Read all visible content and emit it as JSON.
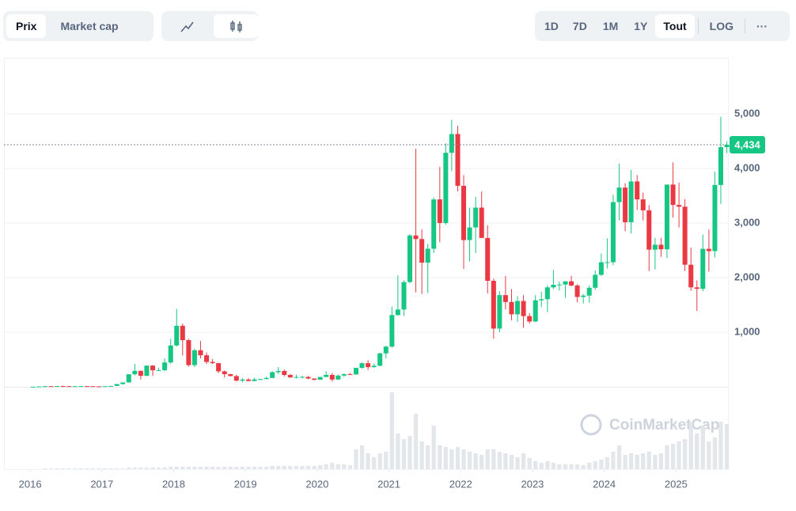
{
  "toolbar": {
    "metric_tabs": [
      "Prix",
      "Market cap"
    ],
    "ranges": [
      "1D",
      "7D",
      "1M",
      "1Y",
      "Tout"
    ],
    "log": "LOG",
    "more": "···"
  },
  "watermark": "CoinMarketCap",
  "chart_data": {
    "type": "candlestick",
    "up_color": "#16c784",
    "down_color": "#ea3943",
    "volume_color": "#e3e6ea",
    "grid": true,
    "ylim": [
      0,
      6000
    ],
    "yticks": [
      {
        "value": 1000,
        "label": "1,000"
      },
      {
        "value": 2000,
        "label": "2,000"
      },
      {
        "value": 3000,
        "label": "3,000"
      },
      {
        "value": 4000,
        "label": "4,000"
      },
      {
        "value": 5000,
        "label": "5,000"
      }
    ],
    "xlim": [
      2015.635,
      2025.724
    ],
    "xticks": [
      2016,
      2017,
      2018,
      2019,
      2020,
      2021,
      2022,
      2023,
      2024,
      2025
    ],
    "last_price": {
      "value": 4434,
      "label": "4,434"
    },
    "x": [
      2016,
      2016.083,
      2016.167,
      2016.25,
      2016.333,
      2016.417,
      2016.5,
      2016.583,
      2016.667,
      2016.75,
      2016.833,
      2016.917,
      2017,
      2017.083,
      2017.167,
      2017.25,
      2017.333,
      2017.417,
      2017.5,
      2017.583,
      2017.667,
      2017.75,
      2017.833,
      2017.917,
      2018,
      2018.083,
      2018.167,
      2018.25,
      2018.333,
      2018.417,
      2018.5,
      2018.583,
      2018.667,
      2018.75,
      2018.833,
      2018.917,
      2019,
      2019.083,
      2019.167,
      2019.25,
      2019.333,
      2019.417,
      2019.5,
      2019.583,
      2019.667,
      2019.75,
      2019.833,
      2019.917,
      2020,
      2020.083,
      2020.167,
      2020.25,
      2020.333,
      2020.417,
      2020.5,
      2020.583,
      2020.667,
      2020.75,
      2020.833,
      2020.917,
      2021,
      2021.083,
      2021.167,
      2021.25,
      2021.333,
      2021.417,
      2021.5,
      2021.583,
      2021.667,
      2021.75,
      2021.833,
      2021.917,
      2022,
      2022.083,
      2022.167,
      2022.25,
      2022.333,
      2022.417,
      2022.5,
      2022.583,
      2022.667,
      2022.75,
      2022.833,
      2022.917,
      2023,
      2023.083,
      2023.167,
      2023.25,
      2023.333,
      2023.417,
      2023.5,
      2023.583,
      2023.667,
      2023.75,
      2023.833,
      2023.917,
      2024,
      2024.083,
      2024.167,
      2024.25,
      2024.333,
      2024.417,
      2024.5,
      2024.583,
      2024.667,
      2024.75,
      2024.833,
      2024.917,
      2025,
      2025.083,
      2025.167,
      2025.25,
      2025.333,
      2025.417,
      2025.5,
      2025.583,
      2025.667
    ],
    "ohlc": [
      [
        0.95,
        2.2,
        0.9,
        2.2
      ],
      [
        2.2,
        6.7,
        2.1,
        6.4
      ],
      [
        6.4,
        15.3,
        6.1,
        11.5
      ],
      [
        11.5,
        12,
        6.9,
        8.9
      ],
      [
        8.9,
        14.5,
        8.5,
        14
      ],
      [
        14,
        21.5,
        11,
        12.2
      ],
      [
        12.2,
        15,
        10.5,
        11.3
      ],
      [
        11.3,
        11.8,
        10.2,
        11.4
      ],
      [
        11.4,
        13.4,
        11.1,
        13.2
      ],
      [
        13.2,
        13.3,
        10.3,
        11.1
      ],
      [
        11.1,
        11.5,
        7.9,
        8.7
      ],
      [
        8.7,
        8.9,
        6.9,
        8
      ],
      [
        8,
        11.5,
        7.9,
        10.7
      ],
      [
        10.7,
        16,
        10.4,
        15.7
      ],
      [
        15.7,
        53,
        15.3,
        50
      ],
      [
        50,
        80,
        42,
        80
      ],
      [
        80,
        230,
        78,
        230
      ],
      [
        230,
        420,
        210,
        292
      ],
      [
        292,
        300,
        133,
        201
      ],
      [
        201,
        390,
        195,
        388
      ],
      [
        388,
        400,
        200,
        303
      ],
      [
        303,
        350,
        290,
        305
      ],
      [
        305,
        520,
        285,
        446
      ],
      [
        446,
        880,
        420,
        757
      ],
      [
        757,
        1430,
        740,
        1118
      ],
      [
        1118,
        1160,
        575,
        855
      ],
      [
        855,
        880,
        370,
        397
      ],
      [
        397,
        700,
        363,
        670
      ],
      [
        670,
        840,
        520,
        578
      ],
      [
        578,
        630,
        420,
        455
      ],
      [
        455,
        510,
        420,
        433
      ],
      [
        433,
        440,
        250,
        283
      ],
      [
        283,
        300,
        170,
        232
      ],
      [
        232,
        238,
        190,
        197
      ],
      [
        197,
        220,
        100,
        113
      ],
      [
        113,
        160,
        82,
        133
      ],
      [
        133,
        160,
        100,
        107
      ],
      [
        107,
        165,
        102,
        136
      ],
      [
        136,
        146,
        125,
        141
      ],
      [
        141,
        184,
        140,
        162
      ],
      [
        162,
        285,
        160,
        268
      ],
      [
        268,
        362,
        232,
        290
      ],
      [
        290,
        315,
        190,
        218
      ],
      [
        218,
        235,
        165,
        172
      ],
      [
        172,
        222,
        152,
        180
      ],
      [
        180,
        200,
        155,
        182
      ],
      [
        182,
        195,
        138,
        152
      ],
      [
        152,
        155,
        117,
        129
      ],
      [
        129,
        185,
        127,
        180
      ],
      [
        180,
        288,
        178,
        218
      ],
      [
        218,
        253,
        95,
        133
      ],
      [
        133,
        225,
        127,
        206
      ],
      [
        206,
        247,
        180,
        231
      ],
      [
        231,
        252,
        222,
        226
      ],
      [
        226,
        350,
        226,
        346
      ],
      [
        346,
        445,
        335,
        433
      ],
      [
        433,
        488,
        310,
        360
      ],
      [
        360,
        420,
        350,
        386
      ],
      [
        386,
        622,
        374,
        613
      ],
      [
        613,
        750,
        525,
        737
      ],
      [
        737,
        1470,
        714,
        1315
      ],
      [
        1315,
        2040,
        1300,
        1416
      ],
      [
        1416,
        1950,
        1300,
        1919
      ],
      [
        1919,
        2800,
        1900,
        2773
      ],
      [
        2773,
        4360,
        1730,
        2707
      ],
      [
        2707,
        2880,
        1700,
        2275
      ],
      [
        2275,
        2620,
        1720,
        2530
      ],
      [
        2530,
        3470,
        2450,
        3433
      ],
      [
        3433,
        4030,
        2650,
        3001
      ],
      [
        3001,
        4460,
        2970,
        4288
      ],
      [
        4288,
        4890,
        3950,
        4631
      ],
      [
        4631,
        4780,
        3580,
        3683
      ],
      [
        3683,
        3880,
        2160,
        2688
      ],
      [
        2688,
        3280,
        2300,
        2920
      ],
      [
        2920,
        3480,
        2450,
        3283
      ],
      [
        3283,
        3580,
        2780,
        2727
      ],
      [
        2727,
        2960,
        1710,
        1942
      ],
      [
        1942,
        1980,
        880,
        1067
      ],
      [
        1067,
        1750,
        1000,
        1680
      ],
      [
        1680,
        2030,
        1420,
        1554
      ],
      [
        1554,
        1790,
        1220,
        1328
      ],
      [
        1328,
        1660,
        1190,
        1572
      ],
      [
        1572,
        1680,
        1080,
        1296
      ],
      [
        1296,
        1350,
        1160,
        1196
      ],
      [
        1196,
        1680,
        1190,
        1585
      ],
      [
        1585,
        1740,
        1460,
        1605
      ],
      [
        1605,
        1860,
        1370,
        1822
      ],
      [
        1822,
        2140,
        1790,
        1869
      ],
      [
        1869,
        1930,
        1760,
        1874
      ],
      [
        1874,
        1930,
        1630,
        1933
      ],
      [
        1933,
        2030,
        1840,
        1856
      ],
      [
        1856,
        1880,
        1550,
        1646
      ],
      [
        1646,
        1700,
        1530,
        1671
      ],
      [
        1671,
        1860,
        1540,
        1815
      ],
      [
        1815,
        2130,
        1780,
        2052
      ],
      [
        2052,
        2440,
        2030,
        2282
      ],
      [
        2282,
        2720,
        2170,
        2283
      ],
      [
        2283,
        3520,
        2230,
        3384
      ],
      [
        3384,
        4090,
        3050,
        3650
      ],
      [
        3650,
        3730,
        2850,
        3015
      ],
      [
        3015,
        3970,
        2810,
        3762
      ],
      [
        3762,
        3880,
        3240,
        3434
      ],
      [
        3434,
        3560,
        3050,
        3233
      ],
      [
        3233,
        3330,
        2120,
        2513
      ],
      [
        2513,
        2730,
        2150,
        2603
      ],
      [
        2603,
        2730,
        2380,
        2520
      ],
      [
        2520,
        3680,
        2360,
        3705
      ],
      [
        3705,
        4110,
        3100,
        3333
      ],
      [
        3333,
        3740,
        2920,
        3300
      ],
      [
        3300,
        3440,
        2120,
        2237
      ],
      [
        2237,
        2550,
        1760,
        1822
      ],
      [
        1822,
        1950,
        1390,
        1795
      ],
      [
        1795,
        2790,
        1750,
        2528
      ],
      [
        2528,
        2880,
        2110,
        2486
      ],
      [
        2486,
        3940,
        2370,
        3698
      ],
      [
        3698,
        4950,
        3350,
        4390
      ],
      [
        4390,
        4500,
        4280,
        4434
      ]
    ],
    "volume": [
      0,
      0,
      1,
      1,
      1,
      1,
      1,
      1,
      1,
      1,
      1,
      1,
      1,
      1,
      1,
      1,
      2,
      2,
      2,
      2,
      2,
      2,
      2,
      3,
      3,
      3,
      3,
      3,
      3,
      3,
      3,
      3,
      3,
      3,
      3,
      3,
      3,
      3,
      3,
      3,
      4,
      4,
      4,
      4,
      4,
      4,
      4,
      4,
      5,
      6,
      8,
      6,
      6,
      5,
      25,
      30,
      20,
      15,
      20,
      22,
      97,
      45,
      38,
      42,
      70,
      35,
      30,
      55,
      30,
      28,
      25,
      28,
      25,
      22,
      20,
      18,
      25,
      25,
      22,
      20,
      18,
      15,
      20,
      14,
      10,
      8,
      10,
      8,
      6,
      6,
      6,
      6,
      5,
      8,
      10,
      12,
      15,
      22,
      30,
      18,
      20,
      18,
      20,
      22,
      18,
      20,
      30,
      32,
      35,
      38,
      60,
      45,
      55,
      35,
      40,
      60,
      57
    ]
  }
}
